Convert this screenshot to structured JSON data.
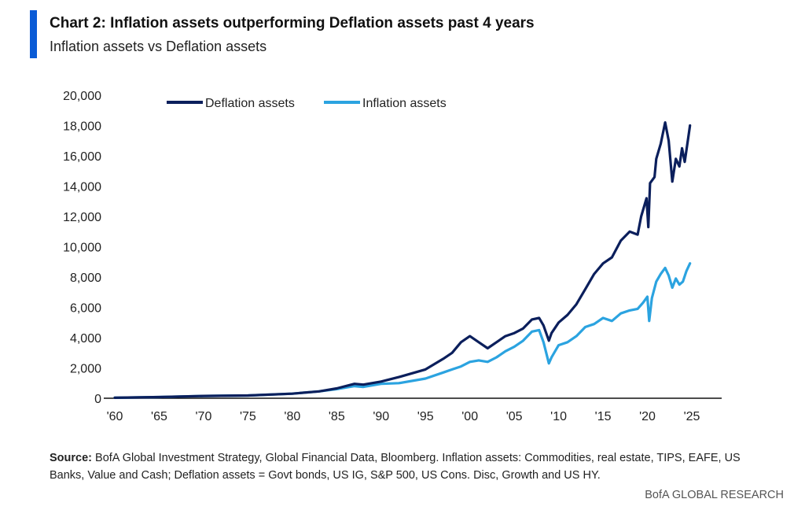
{
  "header": {
    "title": "Chart 2: Inflation assets outperforming Deflation assets past 4 years",
    "subtitle": "Inflation assets vs Deflation assets"
  },
  "footer": {
    "source_label": "Source:",
    "source_text": " BofA Global Investment Strategy, Global Financial Data, Bloomberg. Inflation assets: Commodities, real estate, TIPS, EAFE, US Banks, Value and Cash; Deflation assets = Govt bonds, US IG, S&P 500, US Cons. Disc, Growth and US HY.",
    "brand": "BofA GLOBAL RESEARCH"
  },
  "chart_data": {
    "type": "line",
    "title": "Inflation assets vs Deflation assets",
    "xlabel": "",
    "ylabel": "",
    "xlim": [
      1960,
      2028.5
    ],
    "ylim": [
      0,
      20000
    ],
    "x_ticks": [
      1960,
      1965,
      1970,
      1975,
      1980,
      1985,
      1990,
      1995,
      2000,
      2005,
      2010,
      2015,
      2020,
      2025
    ],
    "x_tick_labels": [
      "'60",
      "'65",
      "'70",
      "'75",
      "'80",
      "'85",
      "'90",
      "'95",
      "'00",
      "'05",
      "'10",
      "'15",
      "'20",
      "'25"
    ],
    "y_ticks": [
      0,
      2000,
      4000,
      6000,
      8000,
      10000,
      12000,
      14000,
      16000,
      18000,
      20000
    ],
    "y_tick_labels": [
      "0",
      "2,000",
      "4,000",
      "6,000",
      "8,000",
      "10,000",
      "12,000",
      "14,000",
      "16,000",
      "18,000",
      "20,000"
    ],
    "grid": false,
    "legend_position": "top",
    "series": [
      {
        "name": "Deflation assets",
        "color": "#0b1f5c",
        "x": [
          1960,
          1965,
          1970,
          1975,
          1980,
          1983,
          1985,
          1987,
          1988,
          1990,
          1992,
          1995,
          1997,
          1998,
          1999,
          2000,
          2001,
          2002,
          2003,
          2004,
          2005,
          2006,
          2007,
          2007.8,
          2008.3,
          2008.9,
          2009.2,
          2010,
          2011,
          2012,
          2013,
          2014,
          2015,
          2016,
          2017,
          2018,
          2018.9,
          2019.3,
          2019.9,
          2020.1,
          2020.3,
          2020.8,
          2021,
          2021.5,
          2022,
          2022.4,
          2022.8,
          2023.2,
          2023.6,
          2023.9,
          2024.2,
          2024.6,
          2024.8
        ],
        "values": [
          30,
          80,
          150,
          180,
          300,
          450,
          650,
          950,
          900,
          1100,
          1400,
          1900,
          2600,
          3000,
          3700,
          4100,
          3700,
          3300,
          3700,
          4100,
          4300,
          4600,
          5200,
          5300,
          4800,
          3800,
          4300,
          5000,
          5500,
          6200,
          7200,
          8200,
          8900,
          9300,
          10400,
          11000,
          10800,
          12000,
          13200,
          11300,
          14200,
          14600,
          15800,
          16800,
          18200,
          17000,
          14300,
          15800,
          15300,
          16500,
          15600,
          17200,
          18000
        ]
      },
      {
        "name": "Inflation assets",
        "color": "#2ba3e0",
        "x": [
          1960,
          1965,
          1970,
          1975,
          1980,
          1983,
          1985,
          1987,
          1988,
          1990,
          1992,
          1995,
          1997,
          1998,
          1999,
          2000,
          2001,
          2002,
          2003,
          2004,
          2005,
          2006,
          2007,
          2007.8,
          2008.3,
          2008.9,
          2009.2,
          2010,
          2011,
          2012,
          2013,
          2014,
          2015,
          2016,
          2017,
          2018,
          2018.9,
          2019.5,
          2020,
          2020.2,
          2020.5,
          2021,
          2021.5,
          2022,
          2022.4,
          2022.8,
          2023.2,
          2023.6,
          2024,
          2024.4,
          2024.8
        ],
        "values": [
          30,
          80,
          150,
          180,
          300,
          450,
          600,
          800,
          750,
          950,
          1000,
          1300,
          1700,
          1900,
          2100,
          2400,
          2500,
          2400,
          2700,
          3100,
          3400,
          3800,
          4400,
          4500,
          3700,
          2300,
          2700,
          3500,
          3700,
          4100,
          4700,
          4900,
          5300,
          5100,
          5600,
          5800,
          5900,
          6300,
          6700,
          5100,
          6600,
          7700,
          8200,
          8600,
          8100,
          7300,
          7900,
          7500,
          7700,
          8400,
          8900
        ]
      }
    ]
  }
}
